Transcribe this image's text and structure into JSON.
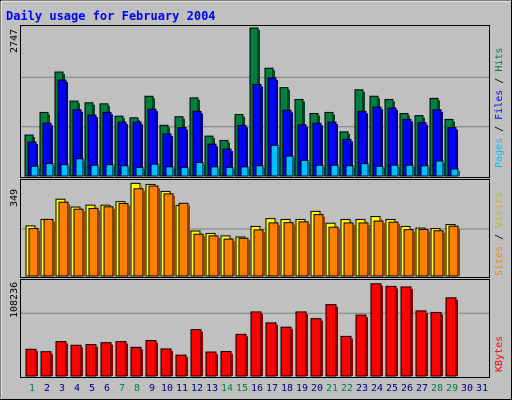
{
  "title": "Daily usage for February 2004",
  "colors": {
    "background": "#c0c0c0",
    "title": "#0000ff",
    "hits": "#008040",
    "files": "#0000ff",
    "pages": "#00c0ff",
    "visits": "#ffff00",
    "sites": "#ff8000",
    "kbytes": "#ff0000",
    "weekend_day": "#008040",
    "weekday": "#000080"
  },
  "chart_data": [
    {
      "type": "bar",
      "panel": "top",
      "categories": [
        "1",
        "2",
        "3",
        "4",
        "5",
        "6",
        "7",
        "8",
        "9",
        "10",
        "11",
        "12",
        "13",
        "14",
        "15",
        "16",
        "17",
        "18",
        "19",
        "20",
        "21",
        "22",
        "23",
        "24",
        "25",
        "26",
        "27",
        "28",
        "29",
        "30",
        "31"
      ],
      "y_max_label": "2747",
      "ylim": [
        0,
        2747
      ],
      "legend": [
        "Pages",
        "Files",
        "Hits"
      ],
      "series": [
        {
          "name": "Hits",
          "values": [
            760,
            1180,
            1930,
            1390,
            1360,
            1340,
            1110,
            1080,
            1480,
            940,
            1100,
            1450,
            740,
            660,
            1140,
            2747,
            2000,
            1640,
            1420,
            1160,
            1180,
            820,
            1600,
            1480,
            1420,
            1160,
            1120,
            1440,
            1050,
            0,
            0
          ]
        },
        {
          "name": "Files",
          "values": [
            630,
            980,
            1780,
            1230,
            1130,
            1180,
            1000,
            1000,
            1240,
            780,
            900,
            1200,
            590,
            500,
            940,
            1700,
            1820,
            1220,
            950,
            980,
            1000,
            680,
            1200,
            1280,
            1260,
            1050,
            990,
            1230,
            900,
            0,
            0
          ]
        },
        {
          "name": "Pages",
          "values": [
            180,
            230,
            210,
            320,
            200,
            210,
            190,
            160,
            220,
            170,
            160,
            250,
            170,
            160,
            170,
            190,
            570,
            370,
            290,
            200,
            200,
            190,
            230,
            180,
            200,
            200,
            190,
            280,
            130,
            0,
            0
          ]
        }
      ]
    },
    {
      "type": "bar",
      "panel": "middle",
      "categories": [
        "1",
        "2",
        "3",
        "4",
        "5",
        "6",
        "7",
        "8",
        "9",
        "10",
        "11",
        "12",
        "13",
        "14",
        "15",
        "16",
        "17",
        "18",
        "19",
        "20",
        "21",
        "22",
        "23",
        "24",
        "25",
        "26",
        "27",
        "28",
        "29",
        "30",
        "31"
      ],
      "y_max_label": "349",
      "ylim": [
        0,
        349
      ],
      "legend": [
        "Sites",
        "Visits"
      ],
      "series": [
        {
          "name": "Visits",
          "values": [
            186,
            210,
            285,
            256,
            263,
            263,
            276,
            344,
            340,
            314,
            262,
            167,
            158,
            149,
            145,
            184,
            213,
            210,
            210,
            240,
            196,
            210,
            210,
            221,
            210,
            184,
            178,
            176,
            191,
            0,
            0
          ]
        },
        {
          "name": "Sites",
          "values": [
            176,
            210,
            274,
            248,
            251,
            257,
            269,
            324,
            334,
            305,
            270,
            155,
            149,
            137,
            140,
            171,
            197,
            198,
            201,
            228,
            181,
            197,
            197,
            204,
            200,
            172,
            173,
            168,
            185,
            0,
            0
          ]
        }
      ]
    },
    {
      "type": "bar",
      "panel": "bottom",
      "categories": [
        "1",
        "2",
        "3",
        "4",
        "5",
        "6",
        "7",
        "8",
        "9",
        "10",
        "11",
        "12",
        "13",
        "14",
        "15",
        "16",
        "17",
        "18",
        "19",
        "20",
        "21",
        "22",
        "23",
        "24",
        "25",
        "26",
        "27",
        "28",
        "29",
        "30",
        "31"
      ],
      "y_max_label": "108236",
      "ylim": [
        0,
        108236
      ],
      "legend": [
        "KBytes"
      ],
      "series": [
        {
          "name": "KBytes",
          "values": [
            30800,
            28000,
            39600,
            35400,
            36200,
            38400,
            39600,
            33000,
            40800,
            31200,
            24000,
            53400,
            27600,
            28200,
            48000,
            73800,
            61200,
            56200,
            73800,
            66000,
            82200,
            45600,
            70200,
            106200,
            103200,
            102600,
            75000,
            73200,
            90000,
            0,
            0
          ]
        }
      ]
    }
  ],
  "day_label_colors": [
    "weekend_day",
    "weekday",
    "weekday",
    "weekday",
    "weekday",
    "weekday",
    "weekend_day",
    "weekend_day",
    "weekday",
    "weekday",
    "weekday",
    "weekday",
    "weekday",
    "weekend_day",
    "weekend_day",
    "weekday",
    "weekday",
    "weekday",
    "weekday",
    "weekday",
    "weekend_day",
    "weekend_day",
    "weekday",
    "weekday",
    "weekday",
    "weekday",
    "weekday",
    "weekend_day",
    "weekend_day",
    "weekday",
    "weekday"
  ]
}
